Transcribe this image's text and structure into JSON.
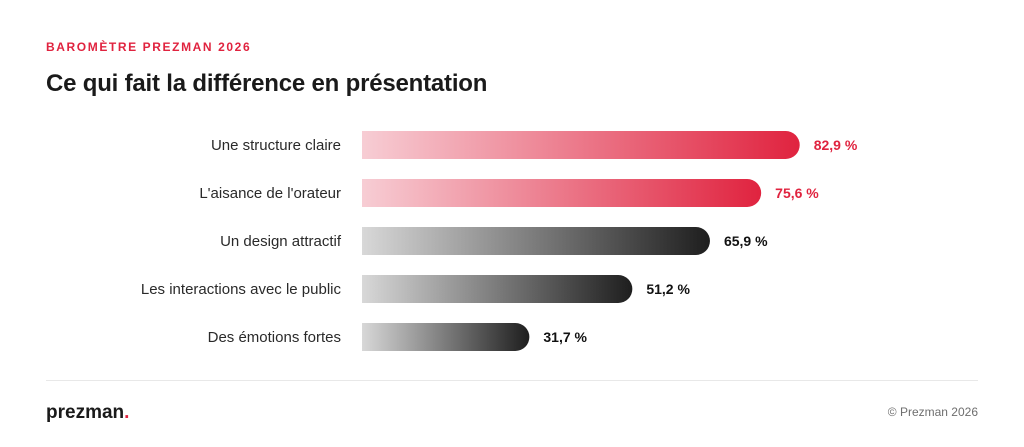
{
  "header": {
    "eyebrow": "BAROMÈTRE PREZMAN 2026",
    "title": "Ce qui fait la différence en présentation"
  },
  "footer": {
    "logo_text": "prezman",
    "logo_dot": ".",
    "copyright": "© Prezman 2026"
  },
  "colors": {
    "accent": "#e0233f",
    "accent_light": "#f7cdd4",
    "dark": "#1e1e1e",
    "gray_light": "#d8d8d8"
  },
  "chart_data": {
    "type": "bar",
    "orientation": "horizontal",
    "title": "Ce qui fait la différence en présentation",
    "categories": [
      "Une structure claire",
      "L'aisance de l'orateur",
      "Un design attractif",
      "Les interactions avec le public",
      "Des émotions fortes"
    ],
    "values": [
      82.9,
      75.6,
      65.9,
      51.2,
      31.7
    ],
    "value_labels": [
      "82,9 %",
      "75,6 %",
      "65,9 %",
      "51,2 %",
      "31,7 %"
    ],
    "highlight": [
      true,
      true,
      false,
      false,
      false
    ],
    "xlim": [
      0,
      100
    ],
    "grid": false,
    "legend": "none"
  }
}
